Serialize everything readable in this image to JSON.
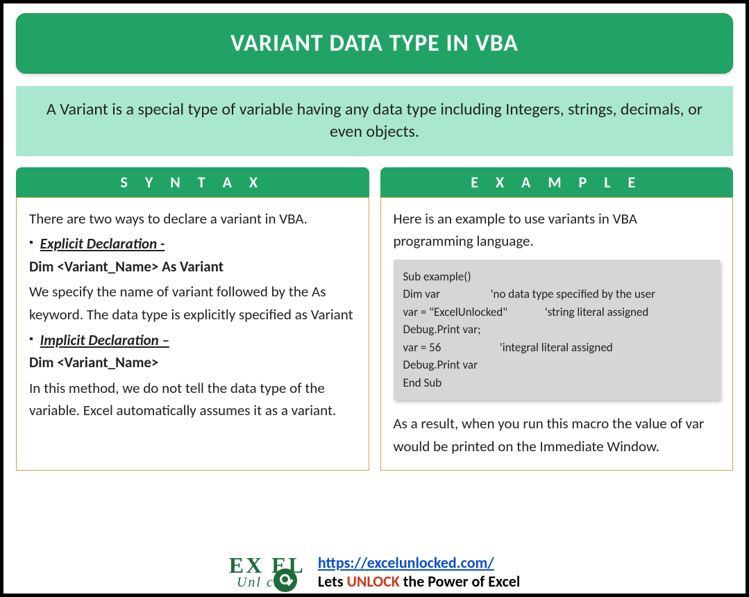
{
  "title": "VARIANT DATA TYPE IN VBA",
  "description": "A Variant is a special type of variable having any data type including Integers, strings, decimals, or even objects.",
  "colors": {
    "primary": "#21a366",
    "light": "#a9e8cf",
    "panel_border": "#cfa24a",
    "code_bg": "#d6d6d6",
    "link": "#0b4fd1",
    "logo": "#1f6b3a",
    "unlock": "#c73a1d"
  },
  "syntax": {
    "header": "S Y N T A X",
    "intro": "There are two ways to declare a variant in VBA.",
    "explicit": {
      "label": "Explicit Declaration -",
      "code": "Dim <Variant_Name> As Variant",
      "text": "We specify the name of variant followed by the As keyword. The data type is explicitly specified as Variant"
    },
    "implicit": {
      "label": "Implicit Declaration –",
      "code": "Dim <Variant_Name>",
      "text": "In this method, we do not tell the data type of the variable. Excel automatically assumes it as a variant."
    }
  },
  "example": {
    "header": "E X A M P L E",
    "intro": "Here is an example to use variants in VBA programming language.",
    "code": "Sub example()\nDim var                   'no data type specified by the user\nvar = \"ExcelUnlocked\"              'string literal assigned\nDebug.Print var;\nvar = 56                      'integral literal assigned\nDebug.Print var\nEnd Sub",
    "result": "As a result, when you run this macro the value of var would be printed on the Immediate Window."
  },
  "footer": {
    "logo_top": "EX  EL",
    "logo_bottom": "Unl   cked",
    "url": "https://excelunlocked.com/",
    "tagline_pre": "Lets ",
    "tagline_unlock": "UNLOCK",
    "tagline_post": " the Power of Excel"
  }
}
